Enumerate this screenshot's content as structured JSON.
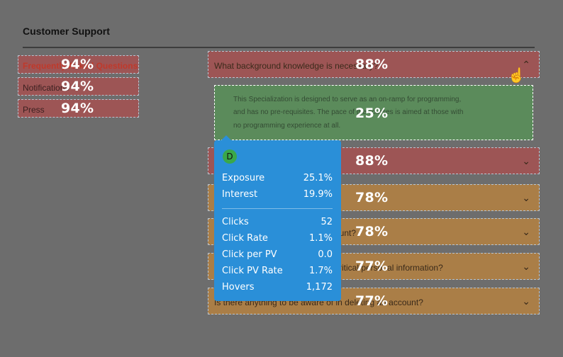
{
  "header": {
    "title": "Customer Support"
  },
  "sidebar": {
    "items": [
      {
        "label": "Frequently Asked Questions",
        "pct": "94%"
      },
      {
        "label": "Notifications",
        "pct": "94%"
      },
      {
        "label": "Press",
        "pct": "94%"
      }
    ]
  },
  "accordion": {
    "items": [
      {
        "question": "What background knowledge is necessary?",
        "pct": "88%",
        "chevron": "⌃"
      },
      {
        "question": "",
        "pct": "88%",
        "chevron": "⌄"
      },
      {
        "question": "",
        "pct": "78%",
        "chevron": "⌄"
      },
      {
        "question": "ount?",
        "pct": "78%",
        "chevron": "⌄"
      },
      {
        "question": "critical personal information?",
        "pct": "77%",
        "chevron": "⌄"
      },
      {
        "question": "Is there anything to be aware of in deleting an account?",
        "pct": "77%",
        "chevron": "⌄"
      }
    ],
    "answer": {
      "lines": [
        "This Specialization is designed to serve as an on-ramp for programming,",
        "and has no pre-requisites. The pace of the courses is aimed at those with",
        "no programming experience at all."
      ],
      "pct": "25%"
    }
  },
  "tooltip": {
    "badge": "D",
    "rows": [
      {
        "label": "Exposure",
        "value": "25.1%"
      },
      {
        "label": "Interest",
        "value": "19.9%"
      },
      {
        "label": "Clicks",
        "value": "52"
      },
      {
        "label": "Click Rate",
        "value": "1.1%"
      },
      {
        "label": "Click per PV",
        "value": "0.0"
      },
      {
        "label": "Click PV Rate",
        "value": "1.7%"
      },
      {
        "label": "Hovers",
        "value": "1,172"
      }
    ]
  },
  "cursor_icon": "hand-pointer-icon"
}
